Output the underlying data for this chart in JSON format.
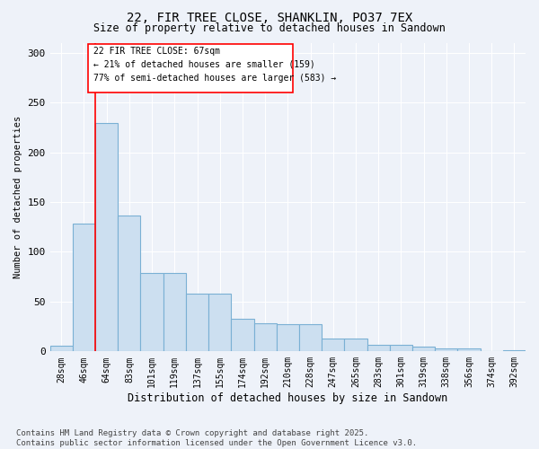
{
  "title1": "22, FIR TREE CLOSE, SHANKLIN, PO37 7EX",
  "title2": "Size of property relative to detached houses in Sandown",
  "xlabel": "Distribution of detached houses by size in Sandown",
  "ylabel": "Number of detached properties",
  "categories": [
    "28sqm",
    "46sqm",
    "64sqm",
    "83sqm",
    "101sqm",
    "119sqm",
    "137sqm",
    "155sqm",
    "174sqm",
    "192sqm",
    "210sqm",
    "228sqm",
    "247sqm",
    "265sqm",
    "283sqm",
    "301sqm",
    "319sqm",
    "338sqm",
    "356sqm",
    "374sqm",
    "392sqm"
  ],
  "values": [
    6,
    128,
    229,
    136,
    79,
    79,
    58,
    58,
    33,
    28,
    27,
    27,
    13,
    13,
    7,
    7,
    5,
    3,
    3,
    0,
    1
  ],
  "bar_color": "#ccdff0",
  "bar_edge_color": "#7ab0d4",
  "red_line_index": 2,
  "annotation_box_text": "22 FIR TREE CLOSE: 67sqm\n← 21% of detached houses are smaller (159)\n77% of semi-detached houses are larger (583) →",
  "ylim": [
    0,
    310
  ],
  "yticks": [
    0,
    50,
    100,
    150,
    200,
    250,
    300
  ],
  "background_color": "#eef2f9",
  "grid_color": "#ffffff",
  "footnote": "Contains HM Land Registry data © Crown copyright and database right 2025.\nContains public sector information licensed under the Open Government Licence v3.0."
}
